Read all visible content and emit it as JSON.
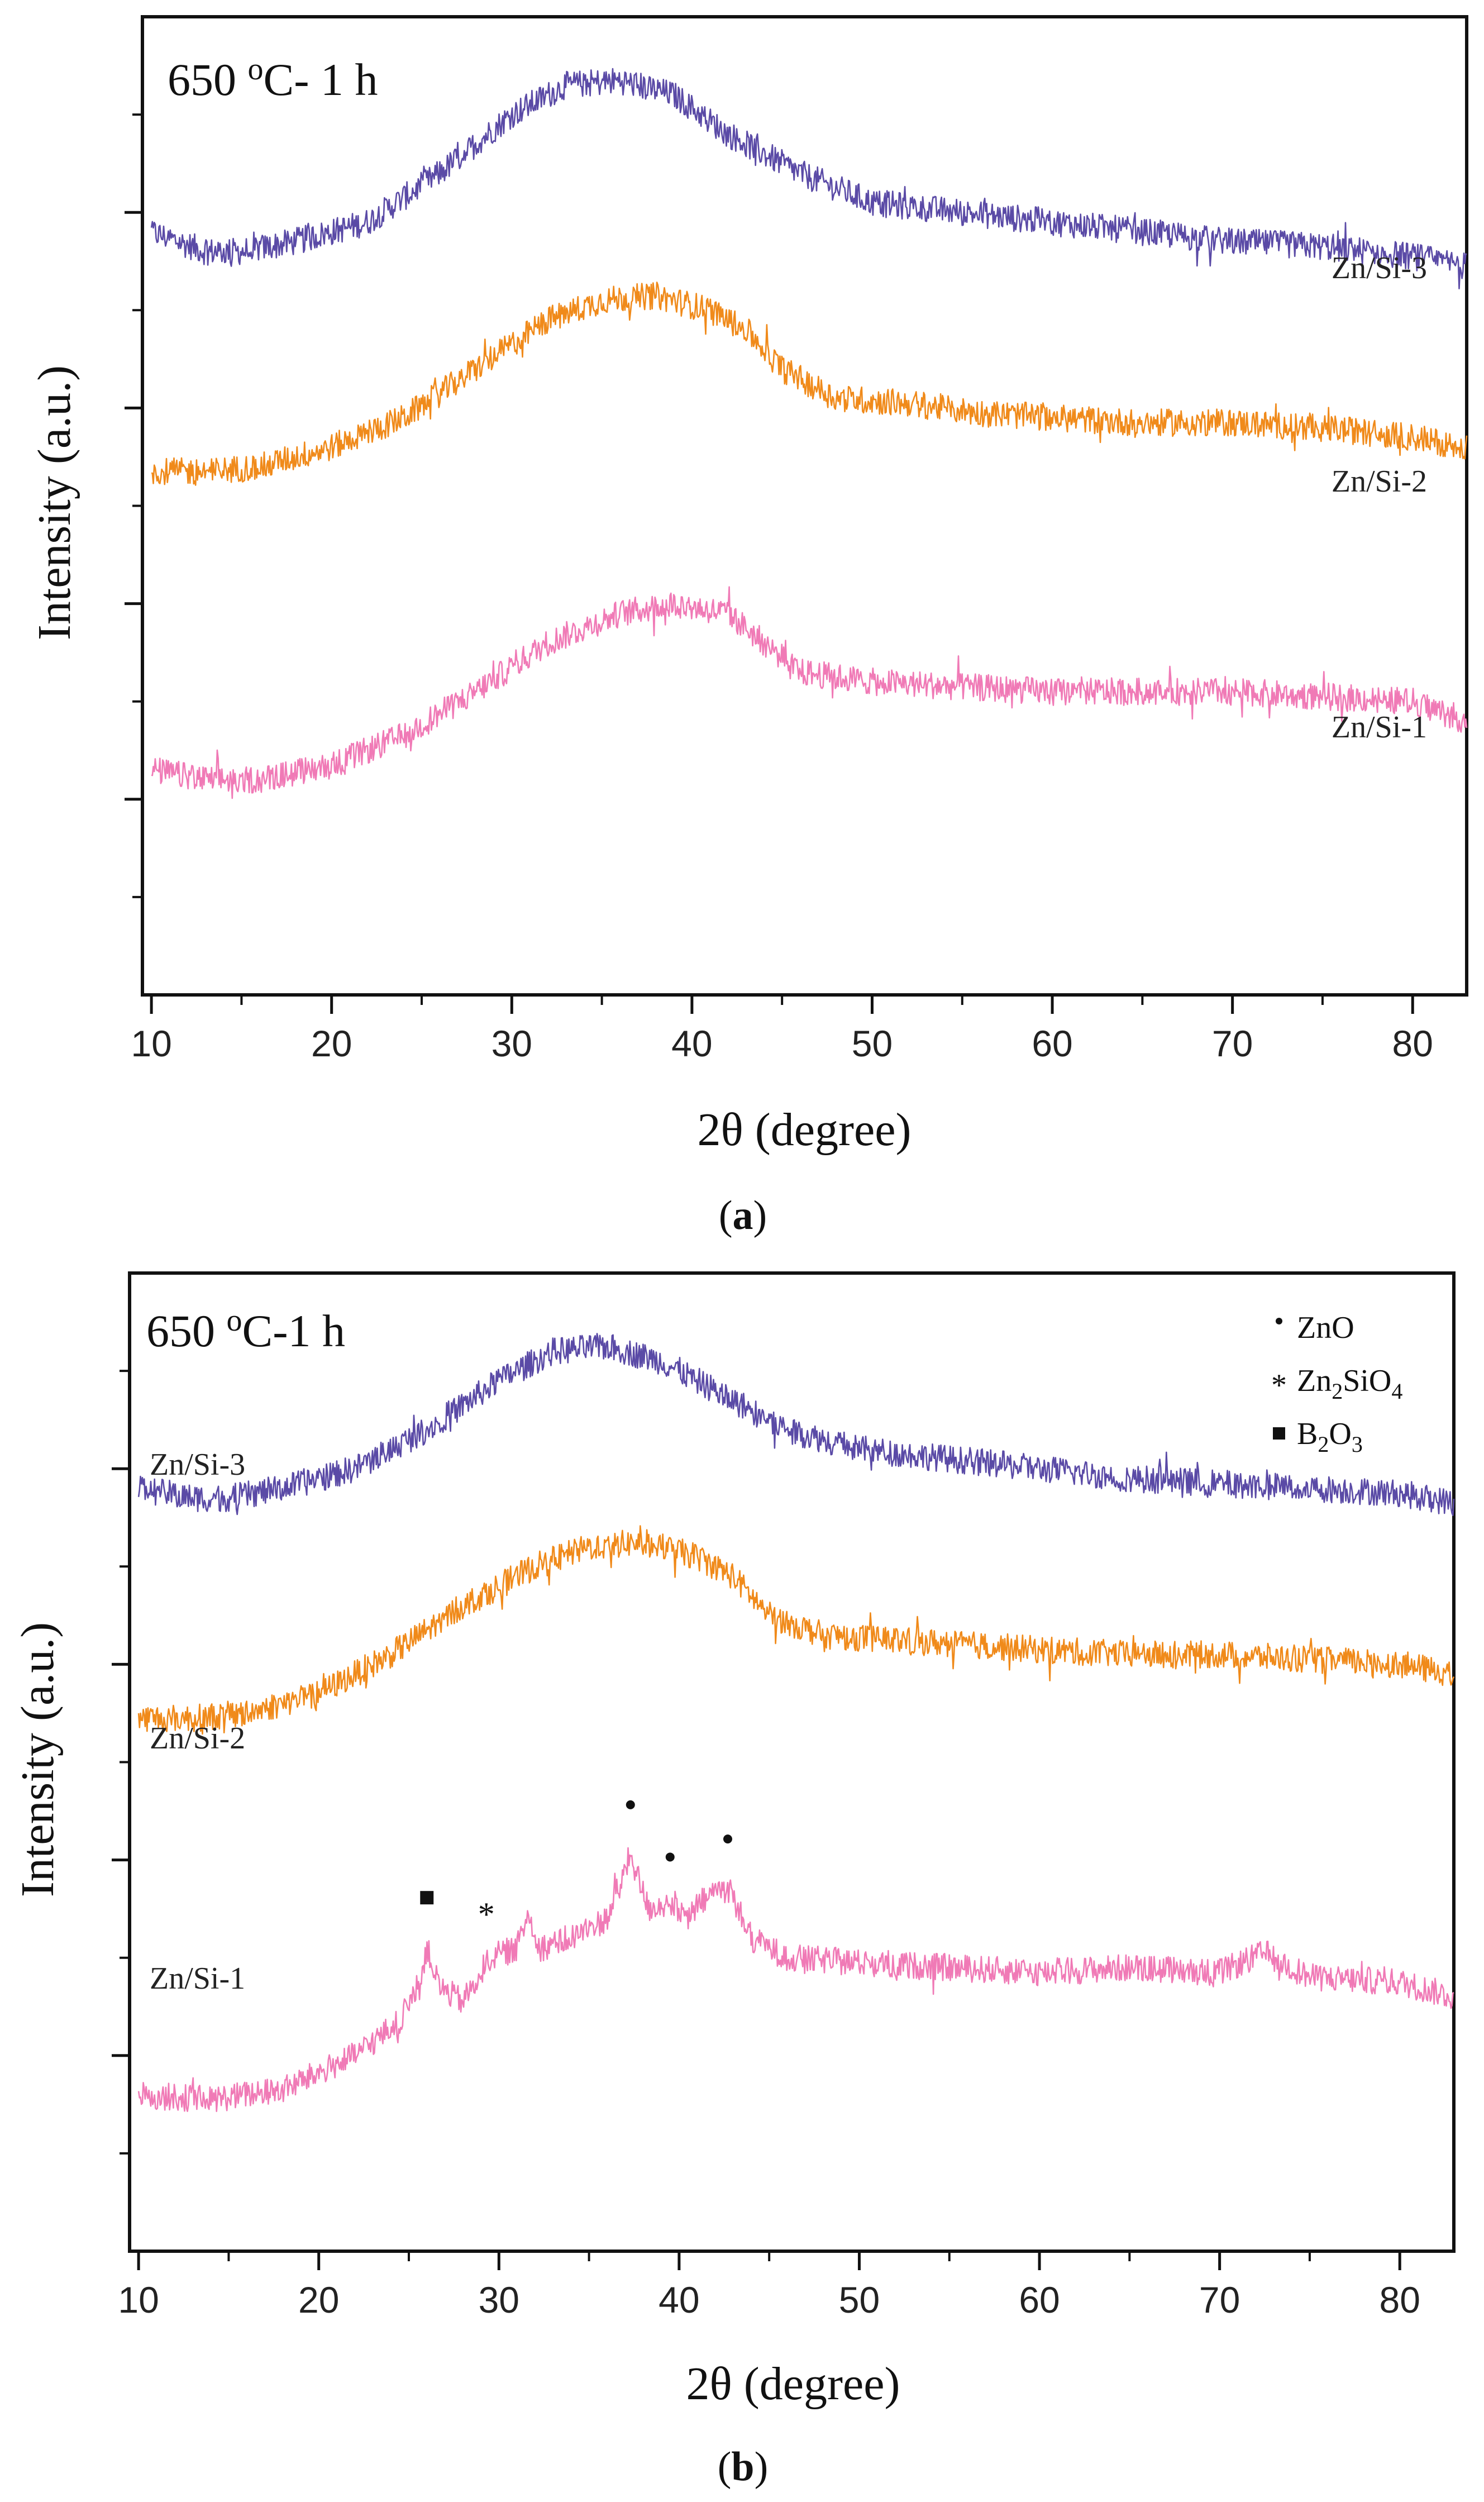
{
  "chart_data": [
    {
      "type": "line",
      "panel": "a",
      "caption": "a",
      "condition_label": "650 oC- 1 h",
      "xlabel": "2θ (degree)",
      "ylabel": "Intensity (a.u.)",
      "xlim": [
        9.5,
        83
      ],
      "x_ticks": [
        10,
        20,
        30,
        40,
        50,
        60,
        70,
        80
      ],
      "series": [
        {
          "name": "Zn/Si-3",
          "color": "#5a4aa6",
          "x": [
            10,
            13,
            15,
            18,
            22,
            26,
            30,
            33,
            36,
            39,
            42,
            46,
            50,
            55,
            60,
            65,
            70,
            75,
            80,
            83
          ],
          "y": [
            0.78,
            0.76,
            0.76,
            0.77,
            0.79,
            0.84,
            0.9,
            0.93,
            0.935,
            0.92,
            0.88,
            0.84,
            0.81,
            0.8,
            0.79,
            0.78,
            0.77,
            0.765,
            0.755,
            0.745
          ]
        },
        {
          "name": "Zn/Si-2",
          "color": "#f08a1a",
          "x": [
            10,
            13,
            16,
            20,
            24,
            28,
            32,
            35,
            38,
            41,
            43,
            45,
            48,
            52,
            56,
            60,
            65,
            70,
            75,
            80,
            83
          ],
          "y": [
            0.535,
            0.535,
            0.54,
            0.56,
            0.59,
            0.64,
            0.69,
            0.71,
            0.715,
            0.7,
            0.68,
            0.64,
            0.61,
            0.605,
            0.595,
            0.59,
            0.585,
            0.585,
            0.58,
            0.57,
            0.56
          ]
        },
        {
          "name": "Zn/Si-1",
          "color": "#f07ab6",
          "x": [
            10,
            13,
            16,
            20,
            24,
            28,
            32,
            36,
            39,
            42,
            44,
            46,
            50,
            55,
            60,
            65,
            70,
            75,
            80,
            83
          ],
          "y": [
            0.23,
            0.22,
            0.22,
            0.235,
            0.265,
            0.31,
            0.36,
            0.39,
            0.4,
            0.39,
            0.36,
            0.33,
            0.32,
            0.315,
            0.31,
            0.31,
            0.31,
            0.305,
            0.3,
            0.28
          ]
        }
      ],
      "label_positions": {
        "Zn/Si-3": "right",
        "Zn/Si-2": "right",
        "Zn/Si-1": "right"
      }
    },
    {
      "type": "line",
      "panel": "b",
      "caption": "b",
      "condition_label": "650 oC-1 h",
      "xlabel": "2θ (degree)",
      "ylabel": "Intensity (a.u.)",
      "xlim": [
        9.5,
        83
      ],
      "x_ticks": [
        10,
        20,
        30,
        40,
        50,
        60,
        70,
        80
      ],
      "legend": [
        {
          "symbol": "•",
          "label": "ZnO"
        },
        {
          "symbol": "*",
          "label": "Zn2SiO4"
        },
        {
          "symbol": "■",
          "label": "B2O3"
        }
      ],
      "series": [
        {
          "name": "Zn/Si-3",
          "color": "#5a4aa6",
          "x": [
            10,
            13,
            15,
            18,
            22,
            26,
            30,
            33,
            36,
            39,
            42,
            46,
            50,
            55,
            60,
            65,
            70,
            75,
            80,
            83
          ],
          "y": [
            0.78,
            0.77,
            0.77,
            0.78,
            0.8,
            0.84,
            0.89,
            0.92,
            0.925,
            0.91,
            0.88,
            0.84,
            0.82,
            0.81,
            0.8,
            0.79,
            0.785,
            0.78,
            0.775,
            0.765
          ]
        },
        {
          "name": "Zn/Si-2",
          "color": "#f08a1a",
          "x": [
            10,
            13,
            16,
            20,
            24,
            28,
            32,
            35,
            38,
            41,
            43,
            45,
            48,
            52,
            56,
            60,
            65,
            70,
            75,
            80,
            83
          ],
          "y": [
            0.545,
            0.545,
            0.55,
            0.57,
            0.61,
            0.66,
            0.7,
            0.72,
            0.725,
            0.71,
            0.69,
            0.65,
            0.63,
            0.625,
            0.62,
            0.615,
            0.61,
            0.61,
            0.605,
            0.6,
            0.59
          ]
        },
        {
          "name": "Zn/Si-1",
          "color": "#f07ab6",
          "x": [
            10,
            14,
            18,
            22,
            24.5,
            25.5,
            26,
            26.7,
            28,
            29.5,
            31,
            31.6,
            32.3,
            34,
            36,
            37.3,
            38.3,
            39.2,
            40.5,
            42,
            42.8,
            44,
            46,
            50,
            55,
            60,
            65,
            70,
            72.5,
            75,
            80,
            83
          ],
          "y": [
            0.16,
            0.155,
            0.165,
            0.2,
            0.235,
            0.27,
            0.31,
            0.27,
            0.255,
            0.3,
            0.31,
            0.345,
            0.31,
            0.32,
            0.34,
            0.405,
            0.35,
            0.355,
            0.34,
            0.37,
            0.37,
            0.32,
            0.3,
            0.295,
            0.29,
            0.285,
            0.29,
            0.285,
            0.305,
            0.28,
            0.275,
            0.26
          ]
        }
      ],
      "peak_markers": [
        {
          "x": 26.0,
          "symbol": "■",
          "phase": "B2O3"
        },
        {
          "x": 29.3,
          "symbol": "*",
          "phase": "Zn2SiO4"
        },
        {
          "x": 37.3,
          "symbol": "•",
          "phase": "ZnO"
        },
        {
          "x": 39.5,
          "symbol": "•",
          "phase": "ZnO"
        },
        {
          "x": 42.7,
          "symbol": "•",
          "phase": "ZnO"
        }
      ],
      "label_positions": {
        "Zn/Si-3": "left",
        "Zn/Si-2": "left",
        "Zn/Si-1": "left"
      }
    }
  ]
}
